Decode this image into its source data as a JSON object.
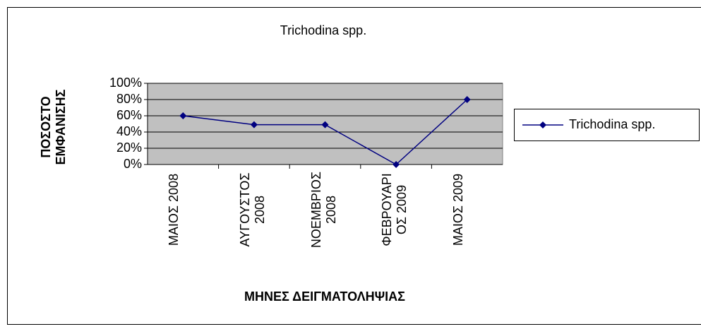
{
  "chart_data": {
    "type": "line",
    "title": "Trichodina spp.",
    "x_label": "ΜΗΝΕΣ ΔΕΙΓΜΑΤΟΛΗΨΙΑΣ",
    "y_label": "ΠΟΣΟΣΤΟ ΕΜΦΑΝΙΣΗΣ",
    "categories": [
      "ΜΑΙΟΣ 2008",
      "ΑΥΓΟΥΣΤΟΣ 2008",
      "ΝΟΕΜΒΡΙΟΣ 2008",
      "ΦΕΒΡΟΥΑΡΙΟΣ 2009",
      "ΜΑΙΟΣ 2009"
    ],
    "series": [
      {
        "name": "Trichodina spp.",
        "color": "#000080",
        "values": [
          60,
          49,
          49,
          0,
          80
        ]
      }
    ],
    "ylim": [
      0,
      100
    ],
    "yticks": [
      {
        "value": 0,
        "label": "0%"
      },
      {
        "value": 20,
        "label": "20%"
      },
      {
        "value": 40,
        "label": "40%"
      },
      {
        "value": 60,
        "label": "60%"
      },
      {
        "value": 80,
        "label": "80%"
      },
      {
        "value": 100,
        "label": "100%"
      }
    ],
    "grid": true,
    "legend": "right"
  }
}
